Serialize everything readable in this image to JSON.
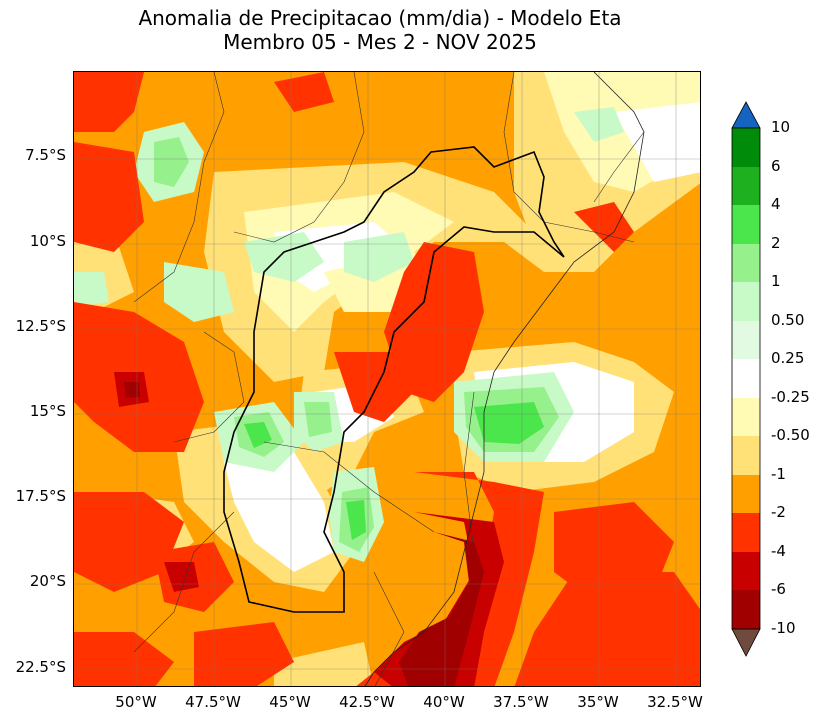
{
  "title": {
    "line1": "Anomalia de Precipitacao (mm/dia) - Modelo Eta",
    "line2": "Membro 05 - Mes 2 - NOV 2025"
  },
  "axes": {
    "lat_ticks": [
      "7.5°S",
      "10°S",
      "12.5°S",
      "15°S",
      "17.5°S",
      "20°S",
      "22.5°S"
    ],
    "lon_ticks": [
      "50°W",
      "47.5°W",
      "45°W",
      "42.5°W",
      "40°W",
      "37.5°W",
      "35°W",
      "32.5°W"
    ]
  },
  "colorbar": {
    "labels": [
      "10",
      "6",
      "4",
      "2",
      "1",
      "0.50",
      "0.25",
      "-0.25",
      "-0.50",
      "-1",
      "-2",
      "-4",
      "-6",
      "-10"
    ],
    "colors": {
      "over": "#1565c0",
      "g6_10": "#008c0a",
      "g4_6": "#1eb01e",
      "g2_4": "#4be64b",
      "g1_2": "#96f08c",
      "g05_1": "#c8fac8",
      "g025_05": "#e1fae1",
      "neutral": "#ffffff",
      "y025_05": "#fffab4",
      "y05_1": "#ffe178",
      "o1_2": "#ffa000",
      "r2_4": "#ff3200",
      "r4_6": "#c80000",
      "r6_10": "#a00000",
      "under": "#6e4b3c"
    }
  }
}
